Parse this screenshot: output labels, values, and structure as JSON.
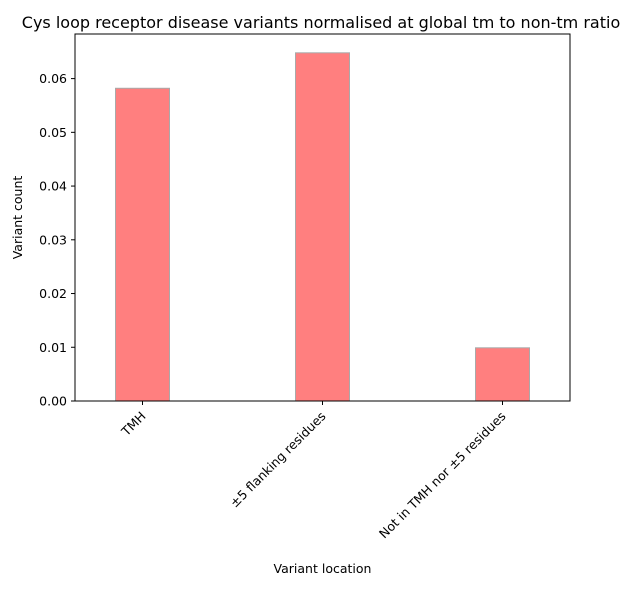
{
  "chart_data": {
    "type": "bar",
    "title": "Cys loop receptor disease variants normalised at global tm to non-tm ratio",
    "xlabel": "Variant location",
    "ylabel": "Variant count",
    "categories": [
      "TMH",
      "±5 flanking residues",
      "Not in TMH nor ±5 residues"
    ],
    "values": [
      0.0582,
      0.0648,
      0.0099
    ],
    "ylim": [
      0,
      0.0683
    ],
    "yticks": [
      0.0,
      0.01,
      0.02,
      0.03,
      0.04,
      0.05,
      0.06
    ],
    "ytick_labels": [
      "0.00",
      "0.01",
      "0.02",
      "0.03",
      "0.04",
      "0.05",
      "0.06"
    ],
    "bar_color": "#ff7f7f",
    "bar_edge_color": "#a9a9a9",
    "grid": false,
    "legend": "none"
  }
}
